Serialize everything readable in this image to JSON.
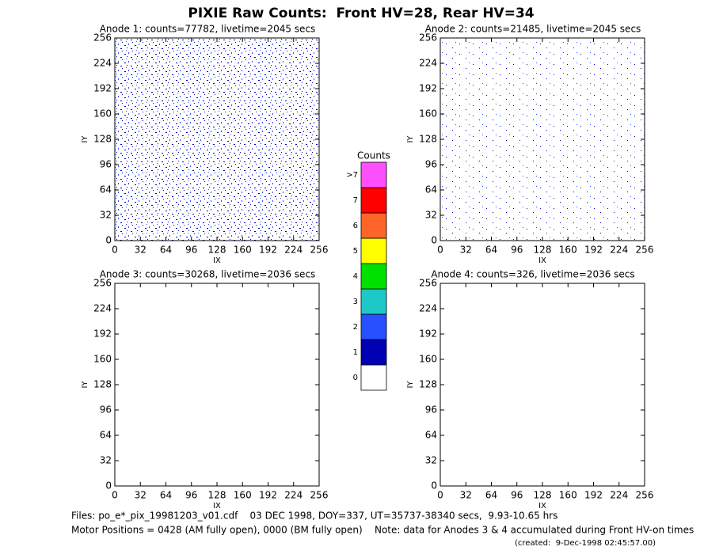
{
  "title": "PIXIE Raw Counts:  Front HV=28, Rear HV=34",
  "chart_data": [
    {
      "type": "image",
      "title": "Anode 1: counts=77782, livetime=2045 secs",
      "xlabel": "IX",
      "ylabel": "IY",
      "xlim": [
        0,
        256
      ],
      "ylim": [
        0,
        256
      ],
      "xticks": [
        0,
        32,
        64,
        96,
        128,
        160,
        192,
        224,
        256
      ],
      "yticks": [
        0,
        32,
        64,
        96,
        128,
        160,
        192,
        224,
        256
      ]
    },
    {
      "type": "image",
      "title": "Anode 2: counts=21485, livetime=2045 secs",
      "xlabel": "IX",
      "ylabel": "IY",
      "xlim": [
        0,
        256
      ],
      "ylim": [
        0,
        256
      ],
      "xticks": [
        0,
        32,
        64,
        96,
        128,
        160,
        192,
        224,
        256
      ],
      "yticks": [
        0,
        32,
        64,
        96,
        128,
        160,
        192,
        224,
        256
      ]
    },
    {
      "type": "image",
      "title": "Anode 3: counts=30268, livetime=2036 secs",
      "xlabel": "IX",
      "ylabel": "IY",
      "xlim": [
        0,
        256
      ],
      "ylim": [
        0,
        256
      ],
      "xticks": [
        0,
        32,
        64,
        96,
        128,
        160,
        192,
        224,
        256
      ],
      "yticks": [
        0,
        32,
        64,
        96,
        128,
        160,
        192,
        224,
        256
      ]
    },
    {
      "type": "image",
      "title": "Anode 4: counts=326, livetime=2036 secs",
      "xlabel": "IX",
      "ylabel": "IY",
      "xlim": [
        0,
        256
      ],
      "ylim": [
        0,
        256
      ],
      "xticks": [
        0,
        32,
        64,
        96,
        128,
        160,
        192,
        224,
        256
      ],
      "yticks": [
        0,
        32,
        64,
        96,
        128,
        160,
        192,
        224,
        256
      ]
    }
  ],
  "colorbar": {
    "title": "Counts",
    "levels": [
      {
        "label": "0",
        "color": "#ffffff"
      },
      {
        "label": "1",
        "color": "#0000b4"
      },
      {
        "label": "2",
        "color": "#2850ff"
      },
      {
        "label": "3",
        "color": "#1ec8c8"
      },
      {
        "label": "4",
        "color": "#00e100"
      },
      {
        "label": "5",
        "color": "#ffff00"
      },
      {
        "label": "6",
        "color": "#ff6428"
      },
      {
        "label": "7",
        "color": "#ff0000"
      },
      {
        "label": ">7",
        "color": "#ff50ff"
      }
    ]
  },
  "footer": {
    "files": "Files: po_e*_pix_19981203_v01.cdf    03 DEC 1998, DOY=337, UT=35737-38340 secs,  9.93-10.65 hrs",
    "motor": "Motor Positions = 0428 (AM fully open), 0000 (BM fully open)    Note: data for Anodes 3 & 4 accumulated during Front HV-on times",
    "created": "(created:  9-Dec-1998 02:45:57.00)"
  }
}
